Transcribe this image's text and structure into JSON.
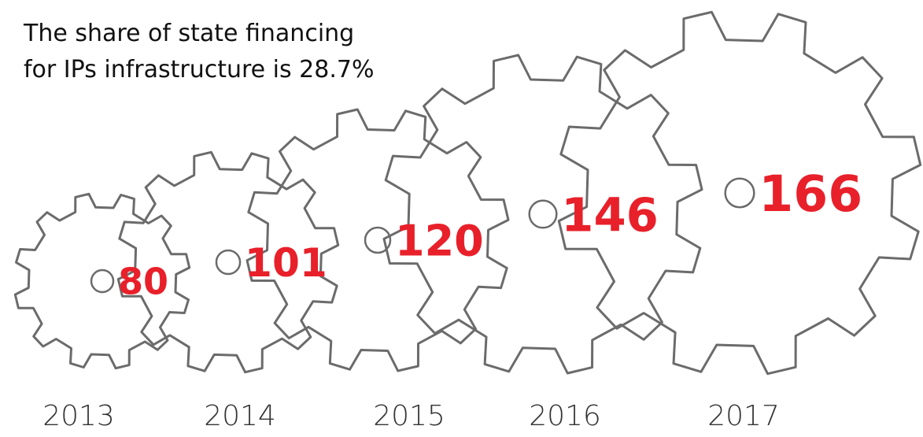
{
  "chart_data": {
    "type": "gear",
    "title": [
      "The share of state financing",
      "for IPs infrastructure is 28.7%"
    ],
    "categories": [
      "2013",
      "2014",
      "2015",
      "2016",
      "2017"
    ],
    "values": [
      80,
      101,
      120,
      146,
      166
    ],
    "color": "#e8202a",
    "gear_color": "#6b6b6b"
  }
}
